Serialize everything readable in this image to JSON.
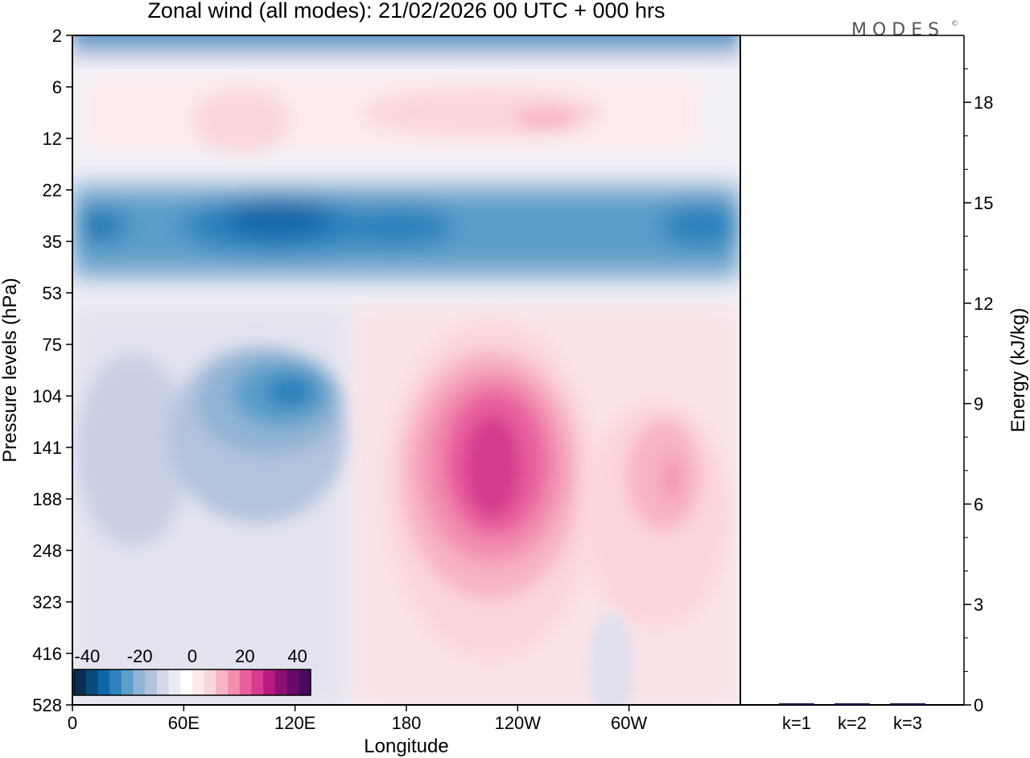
{
  "chart_data": [
    {
      "type": "heatmap",
      "title": "Zonal wind (all modes):  21/02/2026  00 UTC  + 000 hrs",
      "xlabel": "Longitude",
      "ylabel": "Pressure levels (hPa)",
      "x_ticks": [
        "0",
        "60E",
        "120E",
        "180",
        "120W",
        "60W"
      ],
      "x_tick_degrees": [
        0,
        60,
        120,
        180,
        240,
        300
      ],
      "x_range_degrees": [
        0,
        360
      ],
      "y_ticks": [
        "2",
        "6",
        "12",
        "22",
        "35",
        "53",
        "75",
        "104",
        "141",
        "188",
        "248",
        "323",
        "416",
        "528"
      ],
      "colorbar": {
        "tick_labels": [
          "-40",
          "-20",
          "0",
          "20",
          "40"
        ],
        "tick_values": [
          -40,
          -20,
          0,
          20,
          40
        ],
        "range": [
          -45,
          45
        ],
        "colors": [
          "#0b2d4f",
          "#0a4a7a",
          "#0e66a6",
          "#2c82bc",
          "#5b9ec9",
          "#8fb3d4",
          "#b2c3de",
          "#d3d8ea",
          "#ebebf4",
          "#ffffff",
          "#fdebec",
          "#fbd6d9",
          "#f8b4c3",
          "#f28eb0",
          "#e95f9e",
          "#d53b8e",
          "#b81a7f",
          "#8e0f73",
          "#6a0a6b",
          "#4b0860"
        ]
      },
      "features": [
        {
          "label": "stratospheric easterly band",
          "lon": [
            0,
            360
          ],
          "hpa": [
            22,
            53
          ],
          "value": -30
        },
        {
          "label": "upper easterly layer",
          "lon": [
            0,
            360
          ],
          "hpa": [
            2,
            4
          ],
          "value": -25
        },
        {
          "label": "westerly jet core",
          "lon": [
            195,
            245
          ],
          "hpa": [
            104,
            323
          ],
          "value": 33
        },
        {
          "label": "secondary westerly maximum",
          "lon": [
            290,
            315
          ],
          "hpa": [
            104,
            248
          ],
          "value": 15
        },
        {
          "label": "easterly maximum",
          "lon": [
            80,
            140
          ],
          "hpa": [
            75,
            188
          ],
          "value": -22
        }
      ]
    },
    {
      "type": "bar",
      "ylabel": "Energy (kJ/kg)",
      "categories": [
        "k=1",
        "k=2",
        "k=3"
      ],
      "values": [
        0.02,
        0.015,
        0.01
      ],
      "y_ticks": [
        "0",
        "3",
        "6",
        "9",
        "12",
        "15",
        "18"
      ],
      "ylim": [
        0,
        20
      ]
    }
  ],
  "branding": {
    "logo_text": "MODES",
    "logo_mark": "©"
  }
}
